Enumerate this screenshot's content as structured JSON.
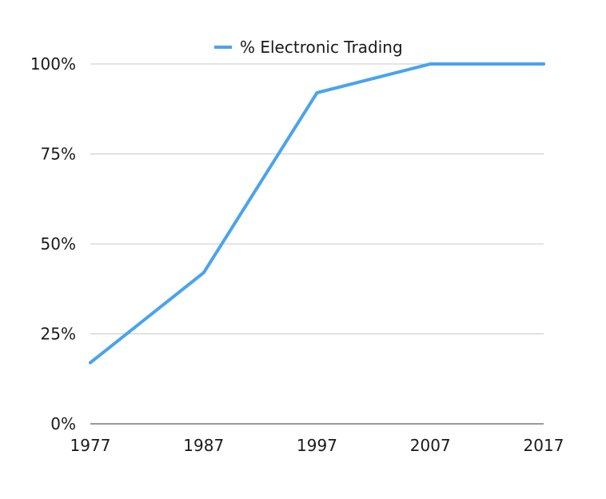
{
  "chart_data": {
    "type": "line",
    "title": "",
    "xlabel": "",
    "ylabel": "",
    "x": [
      1977,
      1987,
      1997,
      2007,
      2017
    ],
    "x_tick_labels": [
      "1977",
      "1987",
      "1997",
      "2007",
      "2017"
    ],
    "y_tick_labels": [
      "0%",
      "25%",
      "50%",
      "75%",
      "100%"
    ],
    "y_ticks": [
      0,
      25,
      50,
      75,
      100
    ],
    "xlim": [
      1977,
      2017
    ],
    "ylim": [
      0,
      100
    ],
    "grid": true,
    "legend_position": "top-center",
    "series": [
      {
        "name": "% Electronic Trading",
        "color": "#4aa3ee",
        "values": [
          17,
          42,
          92,
          100,
          100
        ]
      }
    ]
  }
}
